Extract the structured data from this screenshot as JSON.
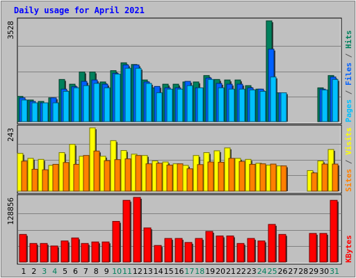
{
  "chart_data": {
    "type": "bar",
    "title": "Daily usage for April 2021",
    "categories": [
      "1",
      "2",
      "3",
      "4",
      "5",
      "6",
      "7",
      "8",
      "9",
      "10",
      "11",
      "12",
      "13",
      "14",
      "15",
      "16",
      "17",
      "18",
      "19",
      "20",
      "21",
      "22",
      "23",
      "24",
      "25",
      "26",
      "27",
      "28",
      "29",
      "30",
      "31"
    ],
    "weekend_days": [
      3,
      4,
      10,
      11,
      17,
      18,
      24,
      25,
      31
    ],
    "panels": [
      {
        "name": "top",
        "ymax": 3528,
        "ymax_label": "3528",
        "ylabel_parts": [
          {
            "text": "Pages",
            "color": "#00c0ff"
          },
          {
            "text": " / ",
            "color": "#555555"
          },
          {
            "text": "Files",
            "color": "#0060ff"
          },
          {
            "text": " / ",
            "color": "#555555"
          },
          {
            "text": "Hits",
            "color": "#00805c"
          }
        ],
        "series": [
          {
            "name": "Hits",
            "color": "#00805c",
            "values": [
              883,
              757,
              707,
              833,
              1476,
              1311,
              1738,
              1738,
              1389,
              1785,
              2060,
              2000,
              1458,
              1183,
              1311,
              1311,
              1389,
              1389,
              1613,
              1476,
              1458,
              1458,
              1260,
              1138,
              3528,
              1010,
              null,
              null,
              null,
              1183,
              1613
            ]
          },
          {
            "name": "Files",
            "color": "#0060ff",
            "values": [
              833,
              707,
              657,
              833,
              1138,
              1223,
              1409,
              1458,
              1311,
              1693,
              1985,
              1985,
              1389,
              1233,
              1183,
              1183,
              1409,
              1183,
              1528,
              1338,
              1311,
              1311,
              1183,
              1138,
              2537,
              1010,
              null,
              null,
              null,
              1138,
              1563
            ]
          },
          {
            "name": "Pages",
            "color": "#00c0ff",
            "values": [
              757,
              657,
              657,
              657,
              1060,
              1183,
              1260,
              1338,
              1183,
              1663,
              1868,
              1868,
              1338,
              1010,
              1138,
              1138,
              1260,
              1183,
              1476,
              1183,
              1138,
              1138,
              1110,
              1060,
              1563,
              1010,
              null,
              null,
              null,
              1110,
              1476
            ]
          }
        ]
      },
      {
        "name": "middle",
        "ymax": 243,
        "ymax_label": "243",
        "ylabel_parts": [
          {
            "text": "Sites",
            "color": "#ff8000"
          },
          {
            "text": " / ",
            "color": "#555555"
          },
          {
            "text": "Visits",
            "color": "#ffff00"
          }
        ],
        "series": [
          {
            "name": "Visits",
            "color": "#ffff00",
            "values": [
              145,
              126,
              122,
              99,
              148,
              180,
              134,
              243,
              134,
              194,
              156,
              142,
              137,
              116,
              112,
              105,
              99,
              137,
              148,
              155,
              166,
              126,
              122,
              107,
              100,
              97,
              null,
              null,
              79,
              116,
              160
            ]
          },
          {
            "name": "Sites",
            "color": "#ff8000",
            "values": [
              115,
              84,
              82,
              103,
              110,
              103,
              137,
              154,
              117,
              121,
              124,
              137,
              105,
              107,
              100,
              105,
              86,
              102,
              112,
              111,
              126,
              114,
              103,
              105,
              104,
              97,
              null,
              null,
              70,
              104,
              104
            ]
          }
        ]
      },
      {
        "name": "bottom",
        "ymax": 128856,
        "ymax_label": "128856",
        "ylabel_parts": [
          {
            "text": "KBytes",
            "color": "#ff0000"
          }
        ],
        "series": [
          {
            "name": "KBytes",
            "color": "#ff0000",
            "values": [
              55000,
              37000,
              37000,
              32000,
              42000,
              48000,
              37000,
              40000,
              40000,
              81000,
              123000,
              128856,
              68000,
              33000,
              47000,
              47000,
              39000,
              47000,
              61000,
              52000,
              52000,
              37000,
              47000,
              42000,
              75000,
              55000,
              null,
              null,
              57000,
              57000,
              123000
            ]
          }
        ]
      }
    ]
  }
}
